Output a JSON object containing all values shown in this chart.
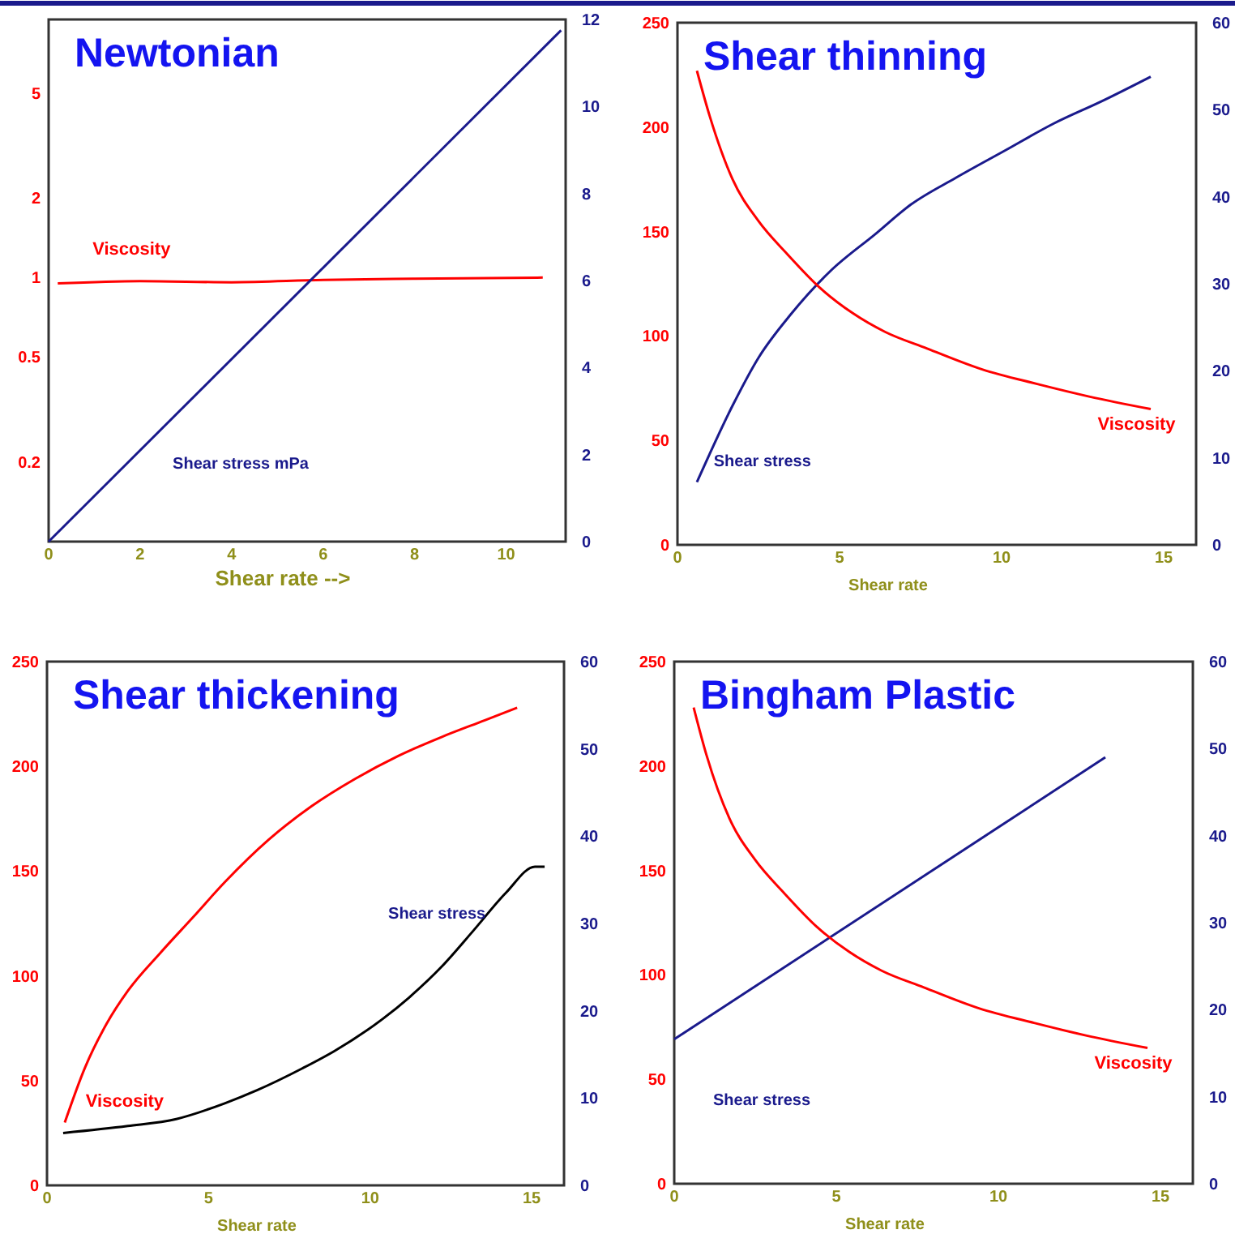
{
  "chart_data": [
    {
      "type": "line",
      "title": "Newtonian",
      "xlabel": "Shear rate -->",
      "xlim": [
        0,
        11.3
      ],
      "xticks": [
        0,
        2,
        4,
        6,
        8,
        10
      ],
      "ylim": [
        0.1,
        9.5
      ],
      "yticks": [
        0.2,
        0.5,
        1,
        2,
        5
      ],
      "log": "y",
      "y2lim": [
        0,
        12
      ],
      "y2ticks": [
        0,
        2,
        4,
        6,
        8,
        10,
        12
      ],
      "series": [
        {
          "name": "Viscosity",
          "color": "#ff0000",
          "x": [
            0.2,
            2,
            4,
            6,
            8,
            10.8
          ],
          "values": [
            0.95,
            0.97,
            0.96,
            0.98,
            0.99,
            1.0
          ]
        },
        {
          "name": "Shear stress mPa",
          "color": "#1a1a8c",
          "axis": "y2",
          "x": [
            0,
            11.2
          ],
          "values": [
            0,
            11.75
          ]
        }
      ]
    },
    {
      "type": "line",
      "title": "Shear thinning",
      "xlabel": "Shear rate",
      "xlim": [
        0,
        16
      ],
      "xticks": [
        0,
        5,
        10,
        15
      ],
      "ylim": [
        0,
        250
      ],
      "yticks": [
        0,
        50,
        100,
        150,
        200,
        250
      ],
      "y2lim": [
        0,
        60
      ],
      "y2ticks": [
        0,
        10,
        20,
        30,
        40,
        50,
        60
      ],
      "series": [
        {
          "name": "Shear stress",
          "color": "#1a1a8c",
          "axis": "y2",
          "x": [
            0.6,
            1.7,
            2.5,
            3.5,
            4.7,
            6.1,
            7.2,
            8.6,
            10.1,
            11.6,
            13.1,
            14.6
          ],
          "values": [
            7.2,
            16,
            21.5,
            26.5,
            31.4,
            35.7,
            39.1,
            42.2,
            45.3,
            48.4,
            51,
            53.8
          ]
        },
        {
          "name": "Viscosity",
          "color": "#ff0000",
          "x": [
            0.6,
            1.0,
            1.7,
            2.5,
            3.4,
            4.4,
            5.4,
            6.4,
            7.7,
            9.4,
            11.1,
            12.7,
            14.6
          ],
          "values": [
            227,
            205,
            175,
            155,
            139,
            123,
            111,
            102,
            94,
            84,
            77,
            71,
            65
          ]
        }
      ]
    },
    {
      "type": "line",
      "title": "Shear thickening",
      "xlabel": "Shear rate",
      "xlim": [
        0,
        16
      ],
      "xticks": [
        0,
        5,
        10,
        15
      ],
      "ylim": [
        0,
        250
      ],
      "yticks": [
        0,
        50,
        100,
        150,
        200,
        250
      ],
      "y2lim": [
        0,
        60
      ],
      "y2ticks": [
        0,
        10,
        20,
        30,
        40,
        50,
        60
      ],
      "series": [
        {
          "name": "Viscosity",
          "color": "#ff0000",
          "x": [
            0.55,
            1.17,
            1.84,
            2.51,
            3.51,
            4.52,
            5.52,
            6.86,
            8.19,
            9.53,
            10.87,
            12.21,
            13.55,
            14.55
          ],
          "values": [
            30,
            56,
            77,
            93,
            111,
            128,
            145,
            165,
            181,
            194,
            205,
            214,
            222,
            228
          ]
        },
        {
          "name": "Shear stress",
          "color": "#000000",
          "axis": "y2",
          "x": [
            0.5,
            2.5,
            4.0,
            5.5,
            6.5,
            7.9,
            8.9,
            10.4,
            11.2,
            12.2,
            13.2,
            14.2,
            15.1,
            15.4
          ],
          "values": [
            6.0,
            6.8,
            7.6,
            9.4,
            10.9,
            13.4,
            15.4,
            19.1,
            21.5,
            25.0,
            29.2,
            33.5,
            36.5,
            36.5
          ]
        }
      ]
    },
    {
      "type": "line",
      "title": "Bingham Plastic",
      "xlabel": "Shear rate",
      "xlim": [
        0,
        16
      ],
      "xticks": [
        0,
        5,
        10,
        15
      ],
      "ylim": [
        0,
        250
      ],
      "yticks": [
        0,
        50,
        100,
        150,
        200,
        250
      ],
      "y2lim": [
        0,
        60
      ],
      "y2ticks": [
        0,
        10,
        20,
        30,
        40,
        50,
        60
      ],
      "series": [
        {
          "name": "Shear stress",
          "color": "#1a1a8c",
          "axis": "y2",
          "x": [
            0,
            13.3
          ],
          "values": [
            16.6,
            49
          ]
        },
        {
          "name": "Viscosity",
          "color": "#ff0000",
          "x": [
            0.6,
            1.0,
            1.7,
            2.5,
            3.4,
            4.4,
            5.4,
            6.4,
            7.7,
            9.4,
            11.1,
            12.7,
            14.6
          ],
          "values": [
            228,
            205,
            175,
            155,
            139,
            123,
            111,
            102,
            94,
            84,
            77,
            71,
            65
          ]
        }
      ]
    }
  ]
}
